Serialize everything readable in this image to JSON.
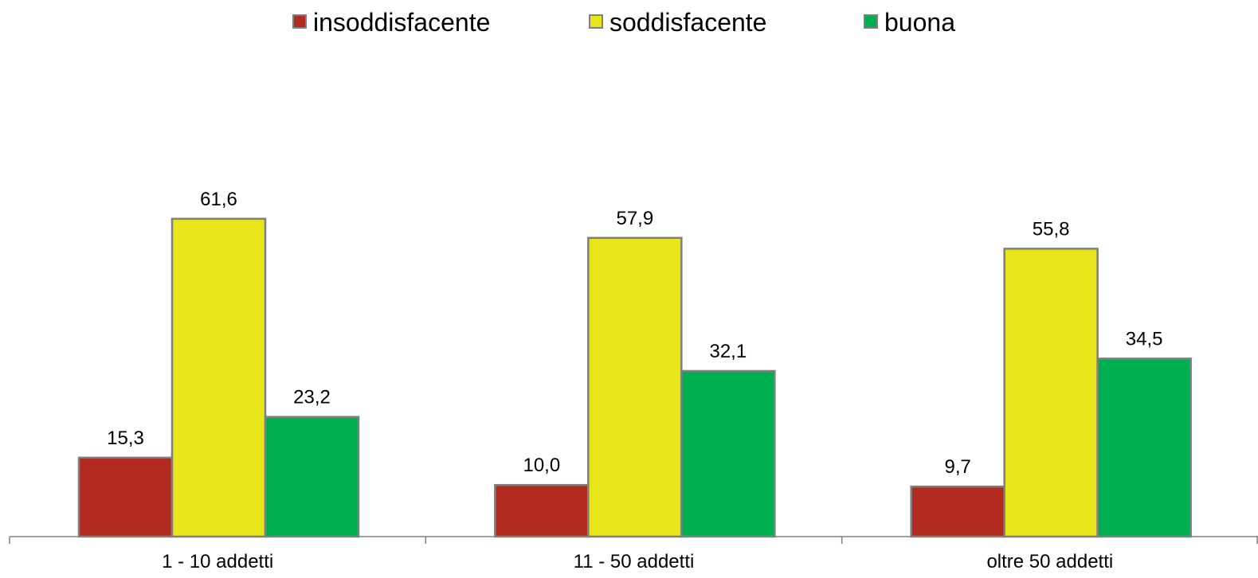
{
  "chart_data": {
    "type": "bar",
    "title": "",
    "xlabel": "",
    "ylabel": "",
    "categories": [
      "1 - 10 addetti",
      "11 - 50 addetti",
      "oltre 50 addetti"
    ],
    "series": [
      {
        "name": "insoddisfacente",
        "color": "#b22a1f",
        "values": [
          15.3,
          10.0,
          9.7
        ],
        "labels": [
          "15,3",
          "10,0",
          "9,7"
        ]
      },
      {
        "name": "soddisfacente",
        "color": "#e8e61a",
        "values": [
          61.6,
          57.9,
          55.8
        ],
        "labels": [
          "61,6",
          "57,9",
          "55,8"
        ]
      },
      {
        "name": "buona",
        "color": "#00b050",
        "values": [
          23.2,
          32.1,
          34.5
        ],
        "labels": [
          "23,2",
          "32,1",
          "34,5"
        ]
      }
    ],
    "ylim": [
      0,
      100
    ],
    "grid": false,
    "legend_position": "top",
    "bar_border_color": "#7f7f7f",
    "axis_color": "#808080"
  }
}
